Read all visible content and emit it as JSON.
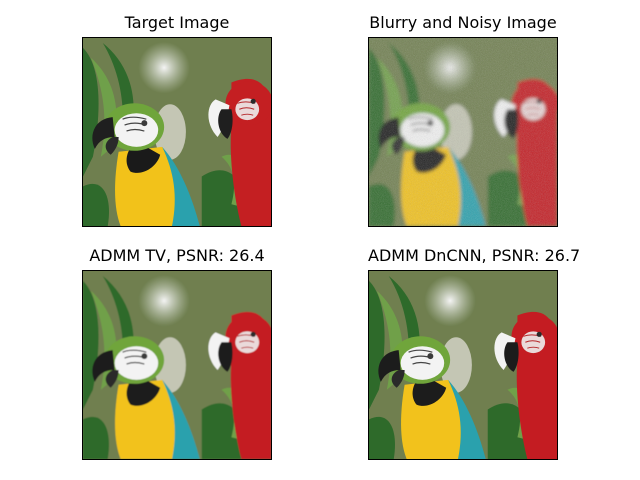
{
  "figure": {
    "panels": [
      {
        "title": "Target Image",
        "variant": "clean"
      },
      {
        "title": "Blurry and Noisy Image",
        "variant": "noisy"
      },
      {
        "title": "ADMM TV, PSNR: 26.4",
        "variant": "tv"
      },
      {
        "title": "ADMM DnCNN, PSNR: 26.7",
        "variant": "dncnn"
      }
    ]
  },
  "colors": {
    "background": "#6f7f4f",
    "foliage_dark": "#2f6a2c",
    "foliage_light": "#6fa04a",
    "macaw_yellow": "#f2c21a",
    "macaw_teal": "#2aa1ad",
    "macaw_green": "#6fa53b",
    "macaw_red": "#c41f22",
    "beak_dark": "#1f1f1f",
    "face_white": "#f3f3f3"
  }
}
